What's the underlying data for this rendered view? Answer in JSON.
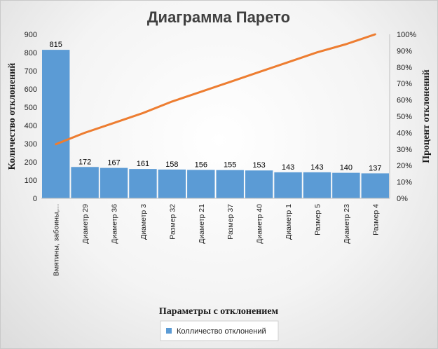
{
  "chart_data": {
    "type": "bar",
    "title": "Диаграмма Парето",
    "xlabel": "Параметры с отклонением",
    "ylabel": "Количество отклонений",
    "y2label": "Процент отклонений",
    "categories": [
      "Вмятины, забоины,...",
      "Диаметр 29",
      "Диаметр 36",
      "Диаметр 3",
      "Размер 32",
      "Диаметр 21",
      "Размер 37",
      "Диаметр 40",
      "Диаметр 1",
      "Размер 5",
      "Диаметр 23",
      "Размер 4"
    ],
    "series": [
      {
        "name": "Колличество отклонений",
        "type": "bar",
        "axis": "left",
        "color": "#5b9bd5",
        "values": [
          815,
          172,
          167,
          161,
          158,
          156,
          155,
          153,
          143,
          143,
          140,
          137
        ]
      },
      {
        "type": "line",
        "axis": "right",
        "color": "#ed7d31",
        "values": [
          0.33,
          0.4,
          0.46,
          0.52,
          0.59,
          0.65,
          0.71,
          0.77,
          0.83,
          0.89,
          0.94,
          1.0
        ]
      }
    ],
    "ylim": [
      0,
      900
    ],
    "yticks": [
      "0",
      "100",
      "200",
      "300",
      "400",
      "500",
      "600",
      "700",
      "800",
      "900"
    ],
    "y2lim": [
      0,
      1
    ],
    "y2ticks": [
      "0%",
      "10%",
      "20%",
      "30%",
      "40%",
      "50%",
      "60%",
      "70%",
      "80%",
      "90%",
      "100%"
    ],
    "grid": false,
    "legend": "bottom"
  }
}
